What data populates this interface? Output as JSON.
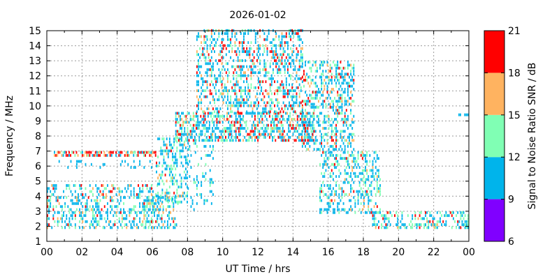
{
  "chart_data": {
    "type": "heatmap",
    "title": "2026-01-02",
    "xlabel": "UT Time / hrs",
    "ylabel": "Frequency / MHz",
    "xlim": [
      0,
      24
    ],
    "ylim": [
      1,
      15
    ],
    "x_ticks": [
      "00",
      "02",
      "04",
      "06",
      "08",
      "10",
      "12",
      "14",
      "16",
      "18",
      "20",
      "22",
      "00"
    ],
    "y_ticks": [
      "1",
      "2",
      "3",
      "4",
      "5",
      "6",
      "7",
      "8",
      "9",
      "10",
      "11",
      "12",
      "13",
      "14",
      "15"
    ],
    "grid": true,
    "colorbar": {
      "label": "Signal to Noise Ratio SNR / dB",
      "range": [
        6,
        21
      ],
      "ticks": [
        "6",
        "9",
        "12",
        "15",
        "18",
        "21"
      ],
      "bands": [
        {
          "from": 6,
          "to": 9,
          "color": "#8000ff"
        },
        {
          "from": 9,
          "to": 12,
          "color": "#00b4eb"
        },
        {
          "from": 12,
          "to": 15,
          "color": "#80ffb4"
        },
        {
          "from": 15,
          "to": 18,
          "color": "#ffb360"
        },
        {
          "from": 18,
          "to": 21,
          "color": "#ff0000"
        }
      ]
    },
    "clusters": [
      {
        "t0": 0.0,
        "t1": 6.3,
        "f0": 1.8,
        "f1": 4.8,
        "density": 0.35,
        "snr_mix": [
          0.0,
          0.55,
          0.25,
          0.1,
          0.1
        ]
      },
      {
        "t0": 0.4,
        "t1": 6.2,
        "f0": 6.6,
        "f1": 6.9,
        "density": 0.7,
        "snr_mix": [
          0.0,
          0.2,
          0.1,
          0.2,
          0.5
        ]
      },
      {
        "t0": 0.5,
        "t1": 6.0,
        "f0": 5.8,
        "f1": 6.4,
        "density": 0.15,
        "snr_mix": [
          0.0,
          1.0,
          0.0,
          0.0,
          0.0
        ]
      },
      {
        "t0": 5.5,
        "t1": 7.5,
        "f0": 1.8,
        "f1": 4.0,
        "density": 0.45,
        "snr_mix": [
          0.0,
          0.55,
          0.25,
          0.15,
          0.05
        ]
      },
      {
        "t0": 6.2,
        "t1": 8.0,
        "f0": 3.5,
        "f1": 7.8,
        "density": 0.35,
        "snr_mix": [
          0.0,
          0.6,
          0.3,
          0.05,
          0.05
        ]
      },
      {
        "t0": 7.3,
        "t1": 15.2,
        "f0": 7.6,
        "f1": 9.5,
        "density": 0.55,
        "snr_mix": [
          0.0,
          0.5,
          0.2,
          0.1,
          0.2
        ]
      },
      {
        "t0": 8.5,
        "t1": 14.6,
        "f0": 9.5,
        "f1": 15.0,
        "density": 0.4,
        "snr_mix": [
          0.0,
          0.55,
          0.2,
          0.1,
          0.15
        ]
      },
      {
        "t0": 8.0,
        "t1": 9.5,
        "f0": 3.0,
        "f1": 7.5,
        "density": 0.15,
        "snr_mix": [
          0.0,
          0.8,
          0.2,
          0.0,
          0.0
        ]
      },
      {
        "t0": 14.5,
        "t1": 17.5,
        "f0": 7.0,
        "f1": 13.0,
        "density": 0.45,
        "snr_mix": [
          0.0,
          0.6,
          0.2,
          0.1,
          0.1
        ]
      },
      {
        "t0": 15.5,
        "t1": 19.0,
        "f0": 2.8,
        "f1": 7.0,
        "density": 0.4,
        "snr_mix": [
          0.0,
          0.6,
          0.3,
          0.05,
          0.05
        ]
      },
      {
        "t0": 18.5,
        "t1": 24.0,
        "f0": 1.8,
        "f1": 3.0,
        "density": 0.4,
        "snr_mix": [
          0.0,
          0.55,
          0.3,
          0.05,
          0.1
        ]
      },
      {
        "t0": 23.4,
        "t1": 24.0,
        "f0": 9.3,
        "f1": 9.5,
        "density": 0.6,
        "snr_mix": [
          0.0,
          1.0,
          0.0,
          0.0,
          0.0
        ]
      }
    ]
  }
}
